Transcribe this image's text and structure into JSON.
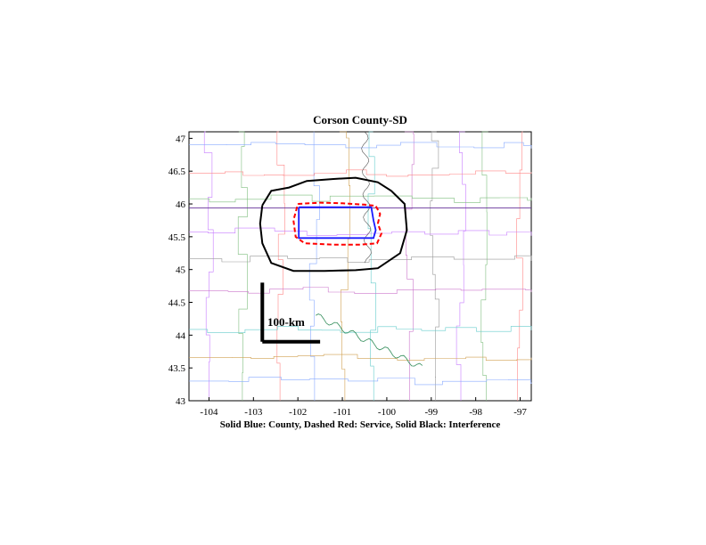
{
  "title": "Corson County-SD",
  "caption": "Solid Blue: County, Dashed Red: Service, Solid Black: Interference",
  "scale_bar_label": "100-km",
  "x_ticks": [
    "-104",
    "-103",
    "-102",
    "-101",
    "-100",
    "-99",
    "-98",
    "-97"
  ],
  "y_ticks": [
    "47",
    "46.5",
    "46",
    "45.5",
    "45",
    "44.5",
    "44",
    "43.5",
    "43"
  ],
  "colors": {
    "county": "#1a1aff",
    "service": "#ff0000",
    "interference": "#000000"
  },
  "chart_data": {
    "type": "map",
    "xlim": [
      -104.45,
      -96.75
    ],
    "ylim": [
      43,
      47.1
    ],
    "county_outline": [
      [
        -101.98,
        45.95
      ],
      [
        -100.35,
        45.95
      ],
      [
        -100.3,
        45.75
      ],
      [
        -100.25,
        45.6
      ],
      [
        -100.3,
        45.48
      ],
      [
        -101.98,
        45.48
      ],
      [
        -101.98,
        45.95
      ]
    ],
    "service_contour": [
      [
        -102.0,
        46.0
      ],
      [
        -101.5,
        46.02
      ],
      [
        -101.0,
        46.01
      ],
      [
        -100.5,
        45.99
      ],
      [
        -100.25,
        45.97
      ],
      [
        -100.15,
        45.85
      ],
      [
        -100.2,
        45.7
      ],
      [
        -100.12,
        45.55
      ],
      [
        -100.22,
        45.4
      ],
      [
        -100.6,
        45.38
      ],
      [
        -101.2,
        45.38
      ],
      [
        -101.85,
        45.4
      ],
      [
        -102.05,
        45.5
      ],
      [
        -102.1,
        45.75
      ],
      [
        -102.0,
        46.0
      ]
    ],
    "interference_contour": [
      [
        -102.8,
        45.98
      ],
      [
        -102.6,
        46.2
      ],
      [
        -102.2,
        46.25
      ],
      [
        -101.8,
        46.35
      ],
      [
        -101.2,
        46.38
      ],
      [
        -100.7,
        46.4
      ],
      [
        -100.2,
        46.33
      ],
      [
        -99.9,
        46.2
      ],
      [
        -99.6,
        46.0
      ],
      [
        -99.55,
        45.6
      ],
      [
        -99.7,
        45.25
      ],
      [
        -100.2,
        45.02
      ],
      [
        -100.7,
        44.99
      ],
      [
        -101.4,
        44.98
      ],
      [
        -102.1,
        44.98
      ],
      [
        -102.6,
        45.1
      ],
      [
        -102.8,
        45.4
      ],
      [
        -102.85,
        45.7
      ],
      [
        -102.8,
        45.98
      ]
    ],
    "scale_bar": {
      "x": -102.8,
      "y": 43.9,
      "length_deg_x": 1.3,
      "length_deg_y": 0.9
    }
  }
}
